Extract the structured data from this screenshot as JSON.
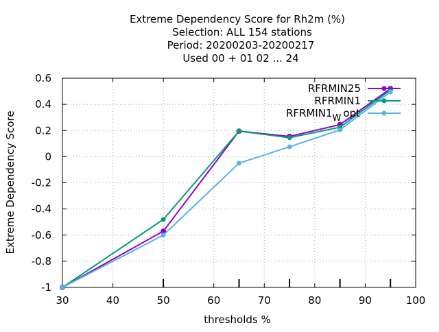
{
  "chart_data": {
    "type": "line",
    "title_lines": [
      "Extreme Dependency Score  for Rh2m (%)",
      "Selection: ALL    154 stations",
      "Period: 20200203-20200217",
      "Used  00 + 01 02 ... 24"
    ],
    "xlabel": "thresholds %",
    "ylabel": "Extreme Dependency Score",
    "xlim": [
      30,
      100
    ],
    "ylim": [
      -1,
      0.6
    ],
    "xticks": [
      30,
      40,
      50,
      60,
      70,
      80,
      90,
      100
    ],
    "xtick_labels": [
      "30",
      "40",
      "50",
      "60",
      "70",
      "80",
      "90",
      "100"
    ],
    "yticks": [
      -1,
      -0.8,
      -0.6,
      -0.4,
      -0.2,
      0,
      0.2,
      0.4,
      0.6
    ],
    "ytick_labels": [
      "-1",
      "-0.8",
      "-0.6",
      "-0.4",
      "-0.2",
      "0",
      "0.2",
      "0.4",
      "0.6"
    ],
    "grid": true,
    "legend_position": "top-right",
    "series": [
      {
        "name": "RFRMIN25",
        "color": "#9400d3",
        "x": [
          30,
          50,
          65,
          75,
          85,
          95
        ],
        "y": [
          -1,
          -0.57,
          0.195,
          0.155,
          0.245,
          0.52
        ]
      },
      {
        "name": "RFRMIN1",
        "color": "#009e73",
        "x": [
          30,
          50,
          65,
          75,
          85,
          95
        ],
        "y": [
          -1,
          -0.48,
          0.195,
          0.145,
          0.225,
          0.51
        ]
      },
      {
        "name": "RFRMIN1",
        "name_sub": "W",
        "name_suffix": "opt",
        "color": "#56b4e9",
        "x": [
          30,
          50,
          65,
          75,
          85,
          95
        ],
        "y": [
          -1,
          -0.6,
          -0.05,
          0.075,
          0.205,
          0.495
        ]
      }
    ]
  }
}
